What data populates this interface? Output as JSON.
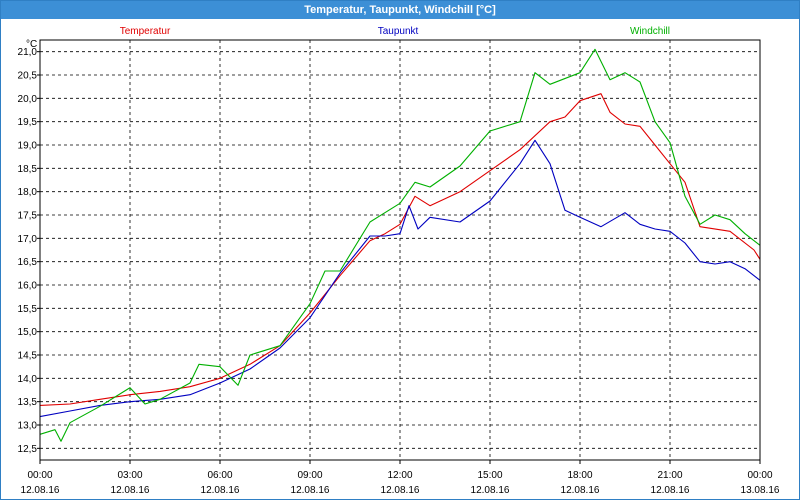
{
  "window": {
    "title": "Temperatur, Taupunkt, Windchill [°C]"
  },
  "chart_data": {
    "type": "line",
    "title": "Temperatur, Taupunkt, Windchill [°C]",
    "unit_label": "°C",
    "ylim": [
      12.25,
      21.25
    ],
    "y_ticks": [
      "12,5",
      "13,0",
      "13,5",
      "14,0",
      "14,5",
      "15,0",
      "15,5",
      "16,0",
      "16,5",
      "17,0",
      "17,5",
      "18,0",
      "18,5",
      "19,0",
      "19,5",
      "20,0",
      "20,5",
      "21,0"
    ],
    "x_tick_labels": [
      {
        "time": "00:00",
        "date": "12.08.16"
      },
      {
        "time": "03:00",
        "date": "12.08.16"
      },
      {
        "time": "06:00",
        "date": "12.08.16"
      },
      {
        "time": "09:00",
        "date": "12.08.16"
      },
      {
        "time": "12:00",
        "date": "12.08.16"
      },
      {
        "time": "15:00",
        "date": "12.08.16"
      },
      {
        "time": "18:00",
        "date": "12.08.16"
      },
      {
        "time": "21:00",
        "date": "12.08.16"
      },
      {
        "time": "00:00",
        "date": "13.08.16"
      }
    ],
    "grid": true,
    "legend_placement": "top",
    "series": [
      {
        "name": "Temperatur",
        "color": "#e00000",
        "points": [
          [
            0,
            13.42
          ],
          [
            1,
            13.45
          ],
          [
            2,
            13.55
          ],
          [
            3,
            13.65
          ],
          [
            4,
            13.72
          ],
          [
            5,
            13.82
          ],
          [
            6,
            14.0
          ],
          [
            7,
            14.3
          ],
          [
            8,
            14.7
          ],
          [
            9,
            15.4
          ],
          [
            10,
            16.2
          ],
          [
            11,
            16.95
          ],
          [
            11.5,
            17.1
          ],
          [
            12,
            17.3
          ],
          [
            12.5,
            17.9
          ],
          [
            13,
            17.7
          ],
          [
            14,
            18.0
          ],
          [
            15,
            18.45
          ],
          [
            16,
            18.9
          ],
          [
            17,
            19.5
          ],
          [
            17.5,
            19.6
          ],
          [
            18,
            19.95
          ],
          [
            18.7,
            20.1
          ],
          [
            19,
            19.7
          ],
          [
            19.5,
            19.45
          ],
          [
            20,
            19.4
          ],
          [
            20.5,
            19.0
          ],
          [
            21,
            18.6
          ],
          [
            21.5,
            18.2
          ],
          [
            22,
            17.25
          ],
          [
            23,
            17.15
          ],
          [
            23.8,
            16.75
          ],
          [
            24,
            16.55
          ]
        ]
      },
      {
        "name": "Taupunkt",
        "color": "#0000c0",
        "points": [
          [
            0,
            13.18
          ],
          [
            1,
            13.3
          ],
          [
            2,
            13.42
          ],
          [
            3,
            13.5
          ],
          [
            4,
            13.55
          ],
          [
            5,
            13.65
          ],
          [
            6,
            13.9
          ],
          [
            7,
            14.2
          ],
          [
            8,
            14.65
          ],
          [
            9,
            15.3
          ],
          [
            10,
            16.25
          ],
          [
            11,
            17.05
          ],
          [
            11.5,
            17.05
          ],
          [
            12,
            17.1
          ],
          [
            12.3,
            17.7
          ],
          [
            12.6,
            17.2
          ],
          [
            13,
            17.45
          ],
          [
            14,
            17.35
          ],
          [
            15,
            17.8
          ],
          [
            16,
            18.6
          ],
          [
            16.5,
            19.1
          ],
          [
            17,
            18.6
          ],
          [
            17.5,
            17.6
          ],
          [
            18,
            17.45
          ],
          [
            18.7,
            17.25
          ],
          [
            19.5,
            17.55
          ],
          [
            20,
            17.3
          ],
          [
            20.5,
            17.2
          ],
          [
            21,
            17.15
          ],
          [
            21.5,
            16.9
          ],
          [
            22,
            16.5
          ],
          [
            22.5,
            16.45
          ],
          [
            23,
            16.5
          ],
          [
            23.5,
            16.35
          ],
          [
            24,
            16.1
          ]
        ]
      },
      {
        "name": "Windchill",
        "color": "#00b000",
        "points": [
          [
            0,
            12.8
          ],
          [
            0.5,
            12.9
          ],
          [
            0.7,
            12.65
          ],
          [
            1,
            13.05
          ],
          [
            2,
            13.4
          ],
          [
            3,
            13.8
          ],
          [
            3.5,
            13.45
          ],
          [
            4,
            13.55
          ],
          [
            5,
            13.9
          ],
          [
            5.3,
            14.3
          ],
          [
            6,
            14.25
          ],
          [
            6.6,
            13.85
          ],
          [
            7,
            14.5
          ],
          [
            8,
            14.7
          ],
          [
            9,
            15.6
          ],
          [
            9.5,
            16.3
          ],
          [
            10,
            16.3
          ],
          [
            11,
            17.35
          ],
          [
            12,
            17.75
          ],
          [
            12.5,
            18.2
          ],
          [
            13,
            18.1
          ],
          [
            14,
            18.55
          ],
          [
            15,
            19.3
          ],
          [
            16,
            19.5
          ],
          [
            16.5,
            20.55
          ],
          [
            17,
            20.3
          ],
          [
            18,
            20.55
          ],
          [
            18.5,
            21.05
          ],
          [
            19,
            20.4
          ],
          [
            19.5,
            20.55
          ],
          [
            20,
            20.35
          ],
          [
            20.5,
            19.5
          ],
          [
            21,
            19.05
          ],
          [
            21.5,
            17.9
          ],
          [
            22,
            17.3
          ],
          [
            22.5,
            17.5
          ],
          [
            23,
            17.4
          ],
          [
            23.5,
            17.1
          ],
          [
            24,
            16.85
          ]
        ]
      }
    ]
  }
}
